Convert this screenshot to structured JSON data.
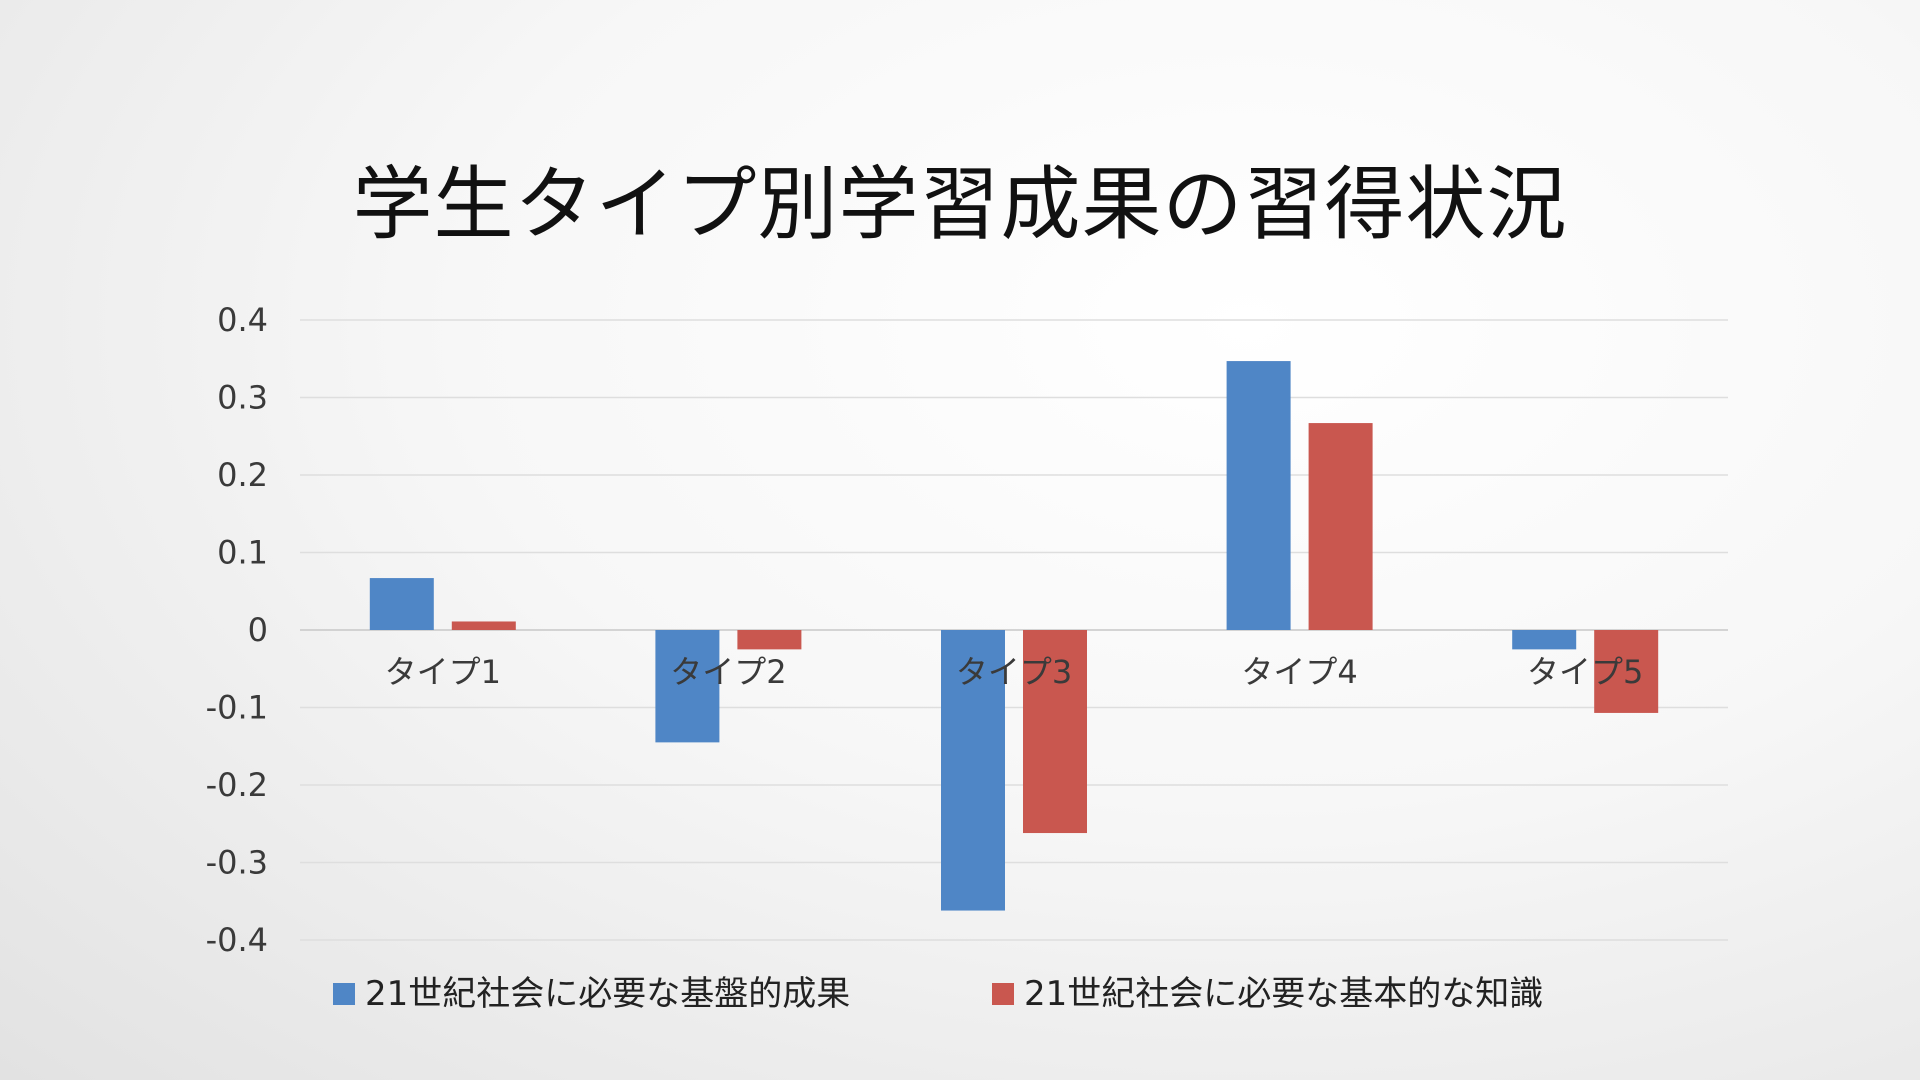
{
  "slide": {
    "title": "学生タイプ別学習成果の習得状況"
  },
  "chart_data": {
    "type": "bar",
    "categories": [
      "タイプ1",
      "タイプ2",
      "タイプ3",
      "タイプ4",
      "タイプ5"
    ],
    "series": [
      {
        "name": "21世紀社会に必要な基盤的成果",
        "color": "#4f86c6",
        "values": [
          0.067,
          -0.145,
          -0.362,
          0.347,
          -0.025
        ]
      },
      {
        "name": "21世紀社会に必要な基本的な知識",
        "color": "#c9574f",
        "values": [
          0.011,
          -0.025,
          -0.262,
          0.267,
          -0.107
        ]
      }
    ],
    "ylim": [
      -0.4,
      0.4
    ],
    "yticks": [
      0.4,
      0.3,
      0.2,
      0.1,
      0,
      -0.1,
      -0.2,
      -0.3,
      -0.4
    ],
    "ytick_labels": [
      "0.4",
      "0.3",
      "0.2",
      "0.1",
      "0",
      "-0.1",
      "-0.2",
      "-0.3",
      "-0.4"
    ],
    "grid": true,
    "legend_position": "bottom",
    "xlabel": "",
    "ylabel": ""
  }
}
